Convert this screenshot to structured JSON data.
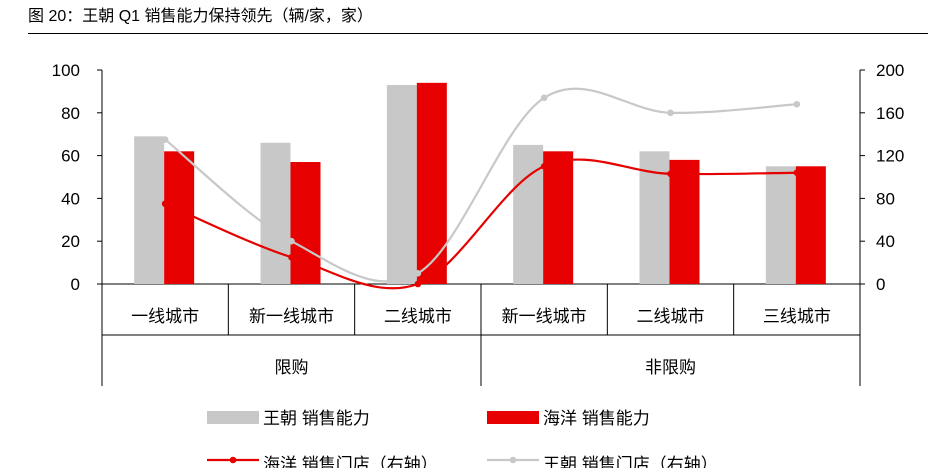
{
  "figure": {
    "title": "图 20：王朝 Q1 销售能力保持领先（辆/家，家）"
  },
  "chart_data": {
    "type": "bar",
    "groups": [
      {
        "label": "限购",
        "categories": [
          "一线城市",
          "新一线城市",
          "二线城市"
        ]
      },
      {
        "label": "非限购",
        "categories": [
          "新一线城市",
          "二线城市",
          "三线城市"
        ]
      }
    ],
    "categories": [
      "一线城市",
      "新一线城市",
      "二线城市",
      "新一线城市",
      "二线城市",
      "三线城市"
    ],
    "ylim_left": [
      0,
      100
    ],
    "yticks_left": [
      "100",
      "80",
      "60",
      "40",
      "20",
      "0"
    ],
    "ylim_right": [
      0,
      200
    ],
    "yticks_right": [
      "200",
      "160",
      "120",
      "80",
      "40",
      "0"
    ],
    "legend_position": "bottom",
    "series": [
      {
        "name": "王朝 销售能力",
        "kind": "bar",
        "axis": "left",
        "color": "#c8c8c8",
        "values": [
          69,
          66,
          93,
          65,
          62,
          55
        ]
      },
      {
        "name": "海洋 销售能力",
        "kind": "bar",
        "axis": "left",
        "color": "#e60000",
        "values": [
          62,
          57,
          94,
          62,
          58,
          55
        ]
      },
      {
        "name": "海洋 销售门店（右轴）",
        "kind": "line",
        "axis": "right",
        "color": "#e60000",
        "values": [
          75,
          25,
          0,
          110,
          103,
          104
        ]
      },
      {
        "name": "王朝 销售门店（右轴）",
        "kind": "line",
        "axis": "right",
        "color": "#c8c8c8",
        "values": [
          135,
          40,
          10,
          174,
          160,
          168
        ]
      }
    ]
  }
}
